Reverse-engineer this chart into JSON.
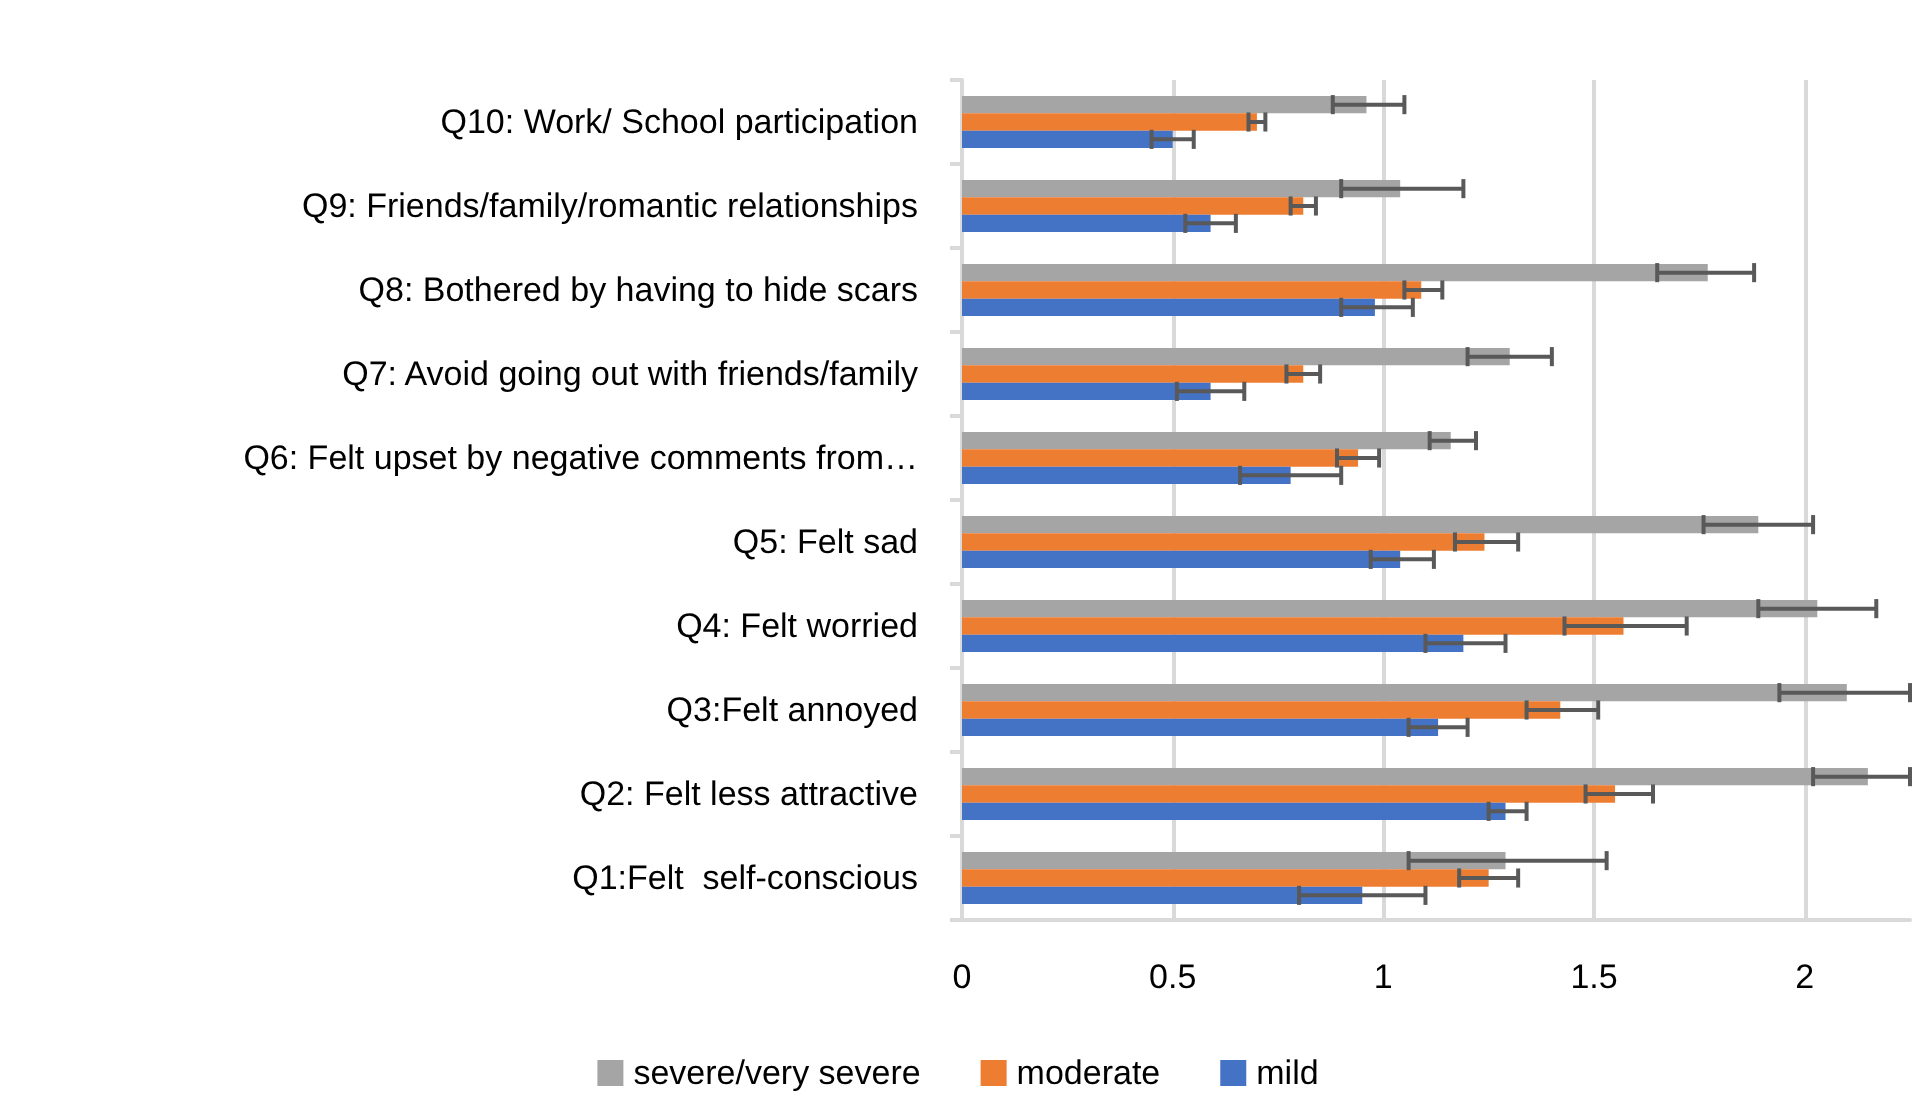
{
  "chart_data": {
    "type": "bar",
    "orientation": "horizontal",
    "categories": [
      "Q10: Work/ School participation",
      "Q9: Friends/family/romantic relationships",
      "Q8: Bothered by having to hide scars",
      "Q7: Avoid going out with friends/family",
      "Q6: Felt upset by negative comments from…",
      "Q5: Felt sad",
      "Q4: Felt worried",
      "Q3:Felt annoyed",
      "Q2: Felt less attractive",
      "Q1:Felt  self-conscious"
    ],
    "series": [
      {
        "name": "severe/very severe",
        "color": "#a5a5a5",
        "values": [
          0.96,
          1.04,
          1.77,
          1.3,
          1.16,
          1.89,
          2.03,
          2.1,
          2.15,
          1.29
        ],
        "errors": [
          [
            0.88,
            1.05
          ],
          [
            0.9,
            1.19
          ],
          [
            1.65,
            1.88
          ],
          [
            1.2,
            1.4
          ],
          [
            1.11,
            1.22
          ],
          [
            1.76,
            2.02
          ],
          [
            1.89,
            2.17
          ],
          [
            1.94,
            2.25
          ],
          [
            2.02,
            2.25
          ],
          [
            1.06,
            1.53
          ]
        ]
      },
      {
        "name": "moderate",
        "color": "#ed7d31",
        "values": [
          0.7,
          0.81,
          1.09,
          0.81,
          0.94,
          1.24,
          1.57,
          1.42,
          1.55,
          1.25
        ],
        "errors": [
          [
            0.68,
            0.72
          ],
          [
            0.78,
            0.84
          ],
          [
            1.05,
            1.14
          ],
          [
            0.77,
            0.85
          ],
          [
            0.89,
            0.99
          ],
          [
            1.17,
            1.32
          ],
          [
            1.43,
            1.72
          ],
          [
            1.34,
            1.51
          ],
          [
            1.48,
            1.64
          ],
          [
            1.18,
            1.32
          ]
        ]
      },
      {
        "name": "mild",
        "color": "#4472c4",
        "values": [
          0.5,
          0.59,
          0.98,
          0.59,
          0.78,
          1.04,
          1.19,
          1.13,
          1.29,
          0.95
        ],
        "errors": [
          [
            0.45,
            0.55
          ],
          [
            0.53,
            0.65
          ],
          [
            0.9,
            1.07
          ],
          [
            0.51,
            0.67
          ],
          [
            0.66,
            0.9
          ],
          [
            0.97,
            1.12
          ],
          [
            1.1,
            1.29
          ],
          [
            1.06,
            1.2
          ],
          [
            1.25,
            1.34
          ],
          [
            0.8,
            1.1
          ]
        ]
      }
    ],
    "xlim": [
      0,
      2.25
    ],
    "xticks": [
      0,
      0.5,
      1,
      1.5,
      2
    ],
    "grid": "x",
    "legend": "bottom"
  }
}
